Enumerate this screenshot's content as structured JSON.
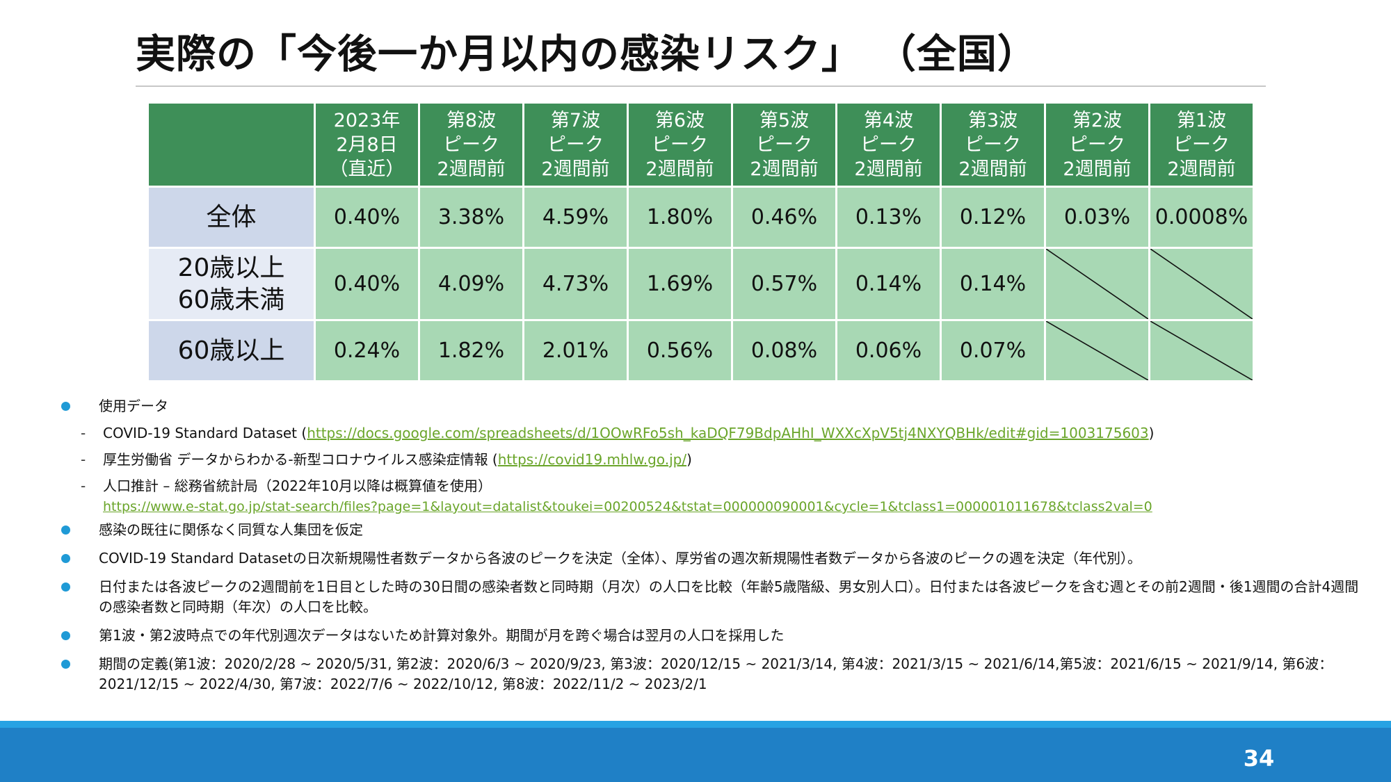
{
  "title": "実際の「今後一か月以内の感染リスク」 （全国）",
  "table": {
    "columns": [
      {
        "lines": [
          "2023年",
          "2月8日",
          "（直近）"
        ]
      },
      {
        "lines": [
          "第8波",
          "ピーク",
          "2週間前"
        ]
      },
      {
        "lines": [
          "第7波",
          "ピーク",
          "2週間前"
        ]
      },
      {
        "lines": [
          "第6波",
          "ピーク",
          "2週間前"
        ]
      },
      {
        "lines": [
          "第5波",
          "ピーク",
          "2週間前"
        ]
      },
      {
        "lines": [
          "第4波",
          "ピーク",
          "2週間前"
        ]
      },
      {
        "lines": [
          "第3波",
          "ピーク",
          "2週間前"
        ]
      },
      {
        "lines": [
          "第2波",
          "ピーク",
          "2週間前"
        ]
      },
      {
        "lines": [
          "第1波",
          "ピーク",
          "2週間前"
        ]
      }
    ],
    "rows": [
      {
        "label": [
          "全体"
        ],
        "values": [
          "0.40%",
          "3.38%",
          "4.59%",
          "1.80%",
          "0.46%",
          "0.13%",
          "0.12%",
          "0.03%",
          "0.0008%"
        ]
      },
      {
        "label": [
          "20歳以上",
          "60歳未満"
        ],
        "values": [
          "0.40%",
          "4.09%",
          "4.73%",
          "1.69%",
          "0.57%",
          "0.14%",
          "0.14%",
          null,
          null
        ]
      },
      {
        "label": [
          "60歳以上"
        ],
        "values": [
          "0.24%",
          "1.82%",
          "2.01%",
          "0.56%",
          "0.08%",
          "0.06%",
          "0.07%",
          null,
          null
        ]
      }
    ]
  },
  "notes": {
    "b1": "使用データ",
    "s1_text": "COVID-19 Standard Dataset (",
    "s1_link": "https://docs.google.com/spreadsheets/d/1OOwRFo5sh_kaDQF79BdpAHhI_WXXcXpV5tj4NXYQBHk/edit#gid=1003175603",
    "s1_end": ")",
    "s2_text": "厚生労働省 データからわかる-新型コロナウイルス感染症情報 (",
    "s2_link": "https://covid19.mhlw.go.jp/",
    "s2_end": ")",
    "s3_text": "人口推計 – 総務省統計局（2022年10月以降は概算値を使用）",
    "s3_link": "https://www.e-stat.go.jp/stat-search/files?page=1&layout=datalist&toukei=00200524&tstat=000000090001&cycle=1&tclass1=000001011678&tclass2val=0",
    "b2": "感染の既往に関係なく同質な人集団を仮定",
    "b3": "COVID-19 Standard Datasetの日次新規陽性者数データから各波のピークを決定（全体）、厚労省の週次新規陽性者数データから各波のピークの週を決定（年代別）。",
    "b4": "日付または各波ピークの2週間前を1日目とした時の30日間の感染者数と同時期（月次）の人口を比較（年齢5歳階級、男女別人口）。日付または各波ピークを含む週とその前2週間・後1週間の合計4週間の感染者数と同時期（年次）の人口を比較。",
    "b5": "第1波・第2波時点での年代別週次データはないため計算対象外。期間が月を跨ぐ場合は翌月の人口を採用した",
    "b6": "期間の定義(第1波：2020/2/28 ~ 2020/5/31, 第2波：2020/6/3 ~ 2020/9/23, 第3波：2020/12/15 ~ 2021/3/14, 第4波：2021/3/15 ~ 2021/6/14,第5波：2021/6/15 ~ 2021/9/14, 第6波：2021/12/15 ~ 2022/4/30, 第7波：2022/7/6 ~ 2022/10/12, 第8波：2022/11/2 ~ 2023/2/1"
  },
  "page_number": "34",
  "colors": {
    "header_green": "#3e8f58",
    "value_green": "#a8d8b4",
    "rowhead_blue": "#cdd7ea",
    "bullet_blue": "#1f9ad6",
    "footer_blue": "#1f80c6",
    "link_green": "#6aa52a"
  }
}
